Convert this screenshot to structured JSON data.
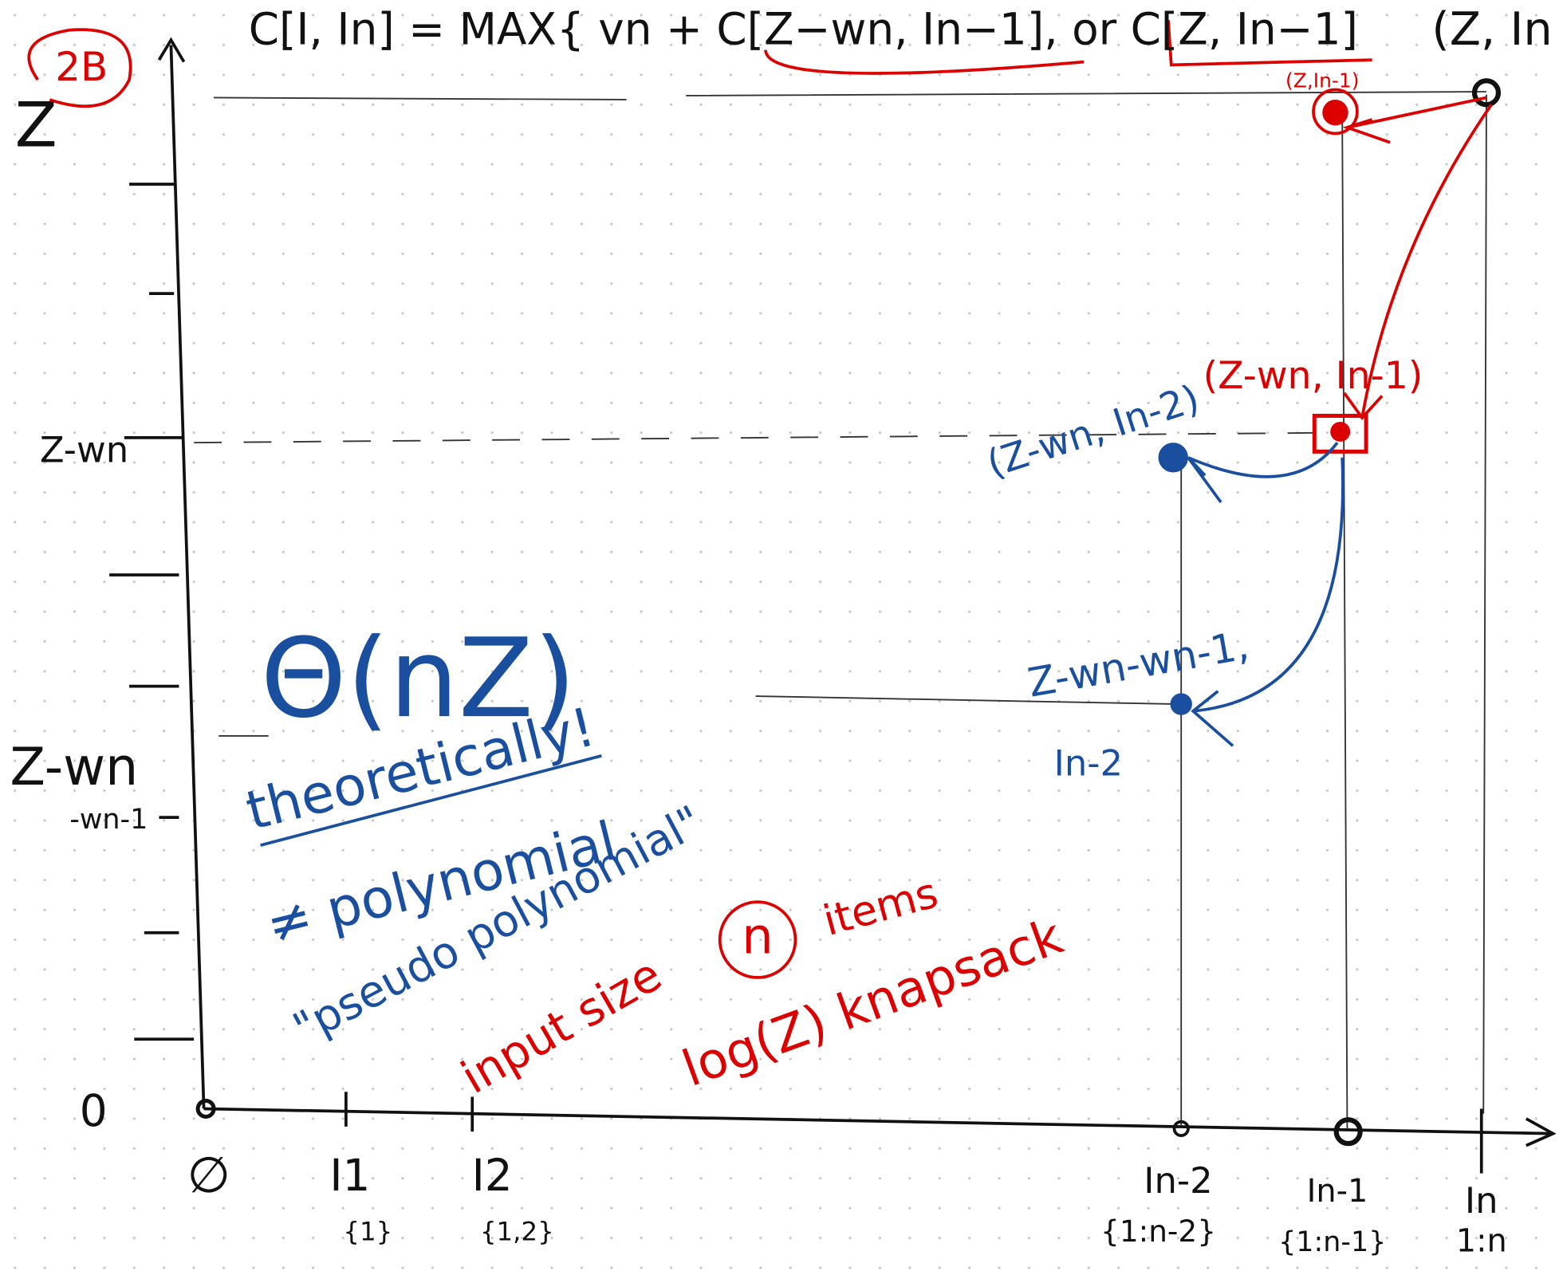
{
  "header": {
    "formula": "C[I, In] = MAX{ vn + C[Z−wn, In−1], or C[Z, In−1]",
    "corner_label": "(Z, In",
    "badge": "2B"
  },
  "y_axis": {
    "labels": [
      "Z",
      "Z-wn",
      "Z-wn",
      "-wn-1",
      "0"
    ]
  },
  "x_axis": {
    "labels": [
      {
        "name": "∅",
        "set": ""
      },
      {
        "name": "I1",
        "set": "{1}"
      },
      {
        "name": "I2",
        "set": "{1,2}"
      },
      {
        "name": "In-2",
        "set": "{1:n-2}"
      },
      {
        "name": "In-1",
        "set": "{1:n-1}"
      },
      {
        "name": "In",
        "set": "1:n"
      }
    ]
  },
  "points": [
    "(Z,In-1)",
    "(Z-wn, In-1)",
    "(Z-wn, In-2)",
    "Z-wn-wn-1,",
    "In-2"
  ],
  "notes": {
    "complexity": "Θ(nZ)",
    "theoretically": "theoretically!",
    "not_poly": "≠ polynomial",
    "pseudo": "\"pseudo polynomial\"",
    "input_size": "input size",
    "n": "n",
    "items": "items",
    "knapsack": "log(Z) knapsack"
  }
}
